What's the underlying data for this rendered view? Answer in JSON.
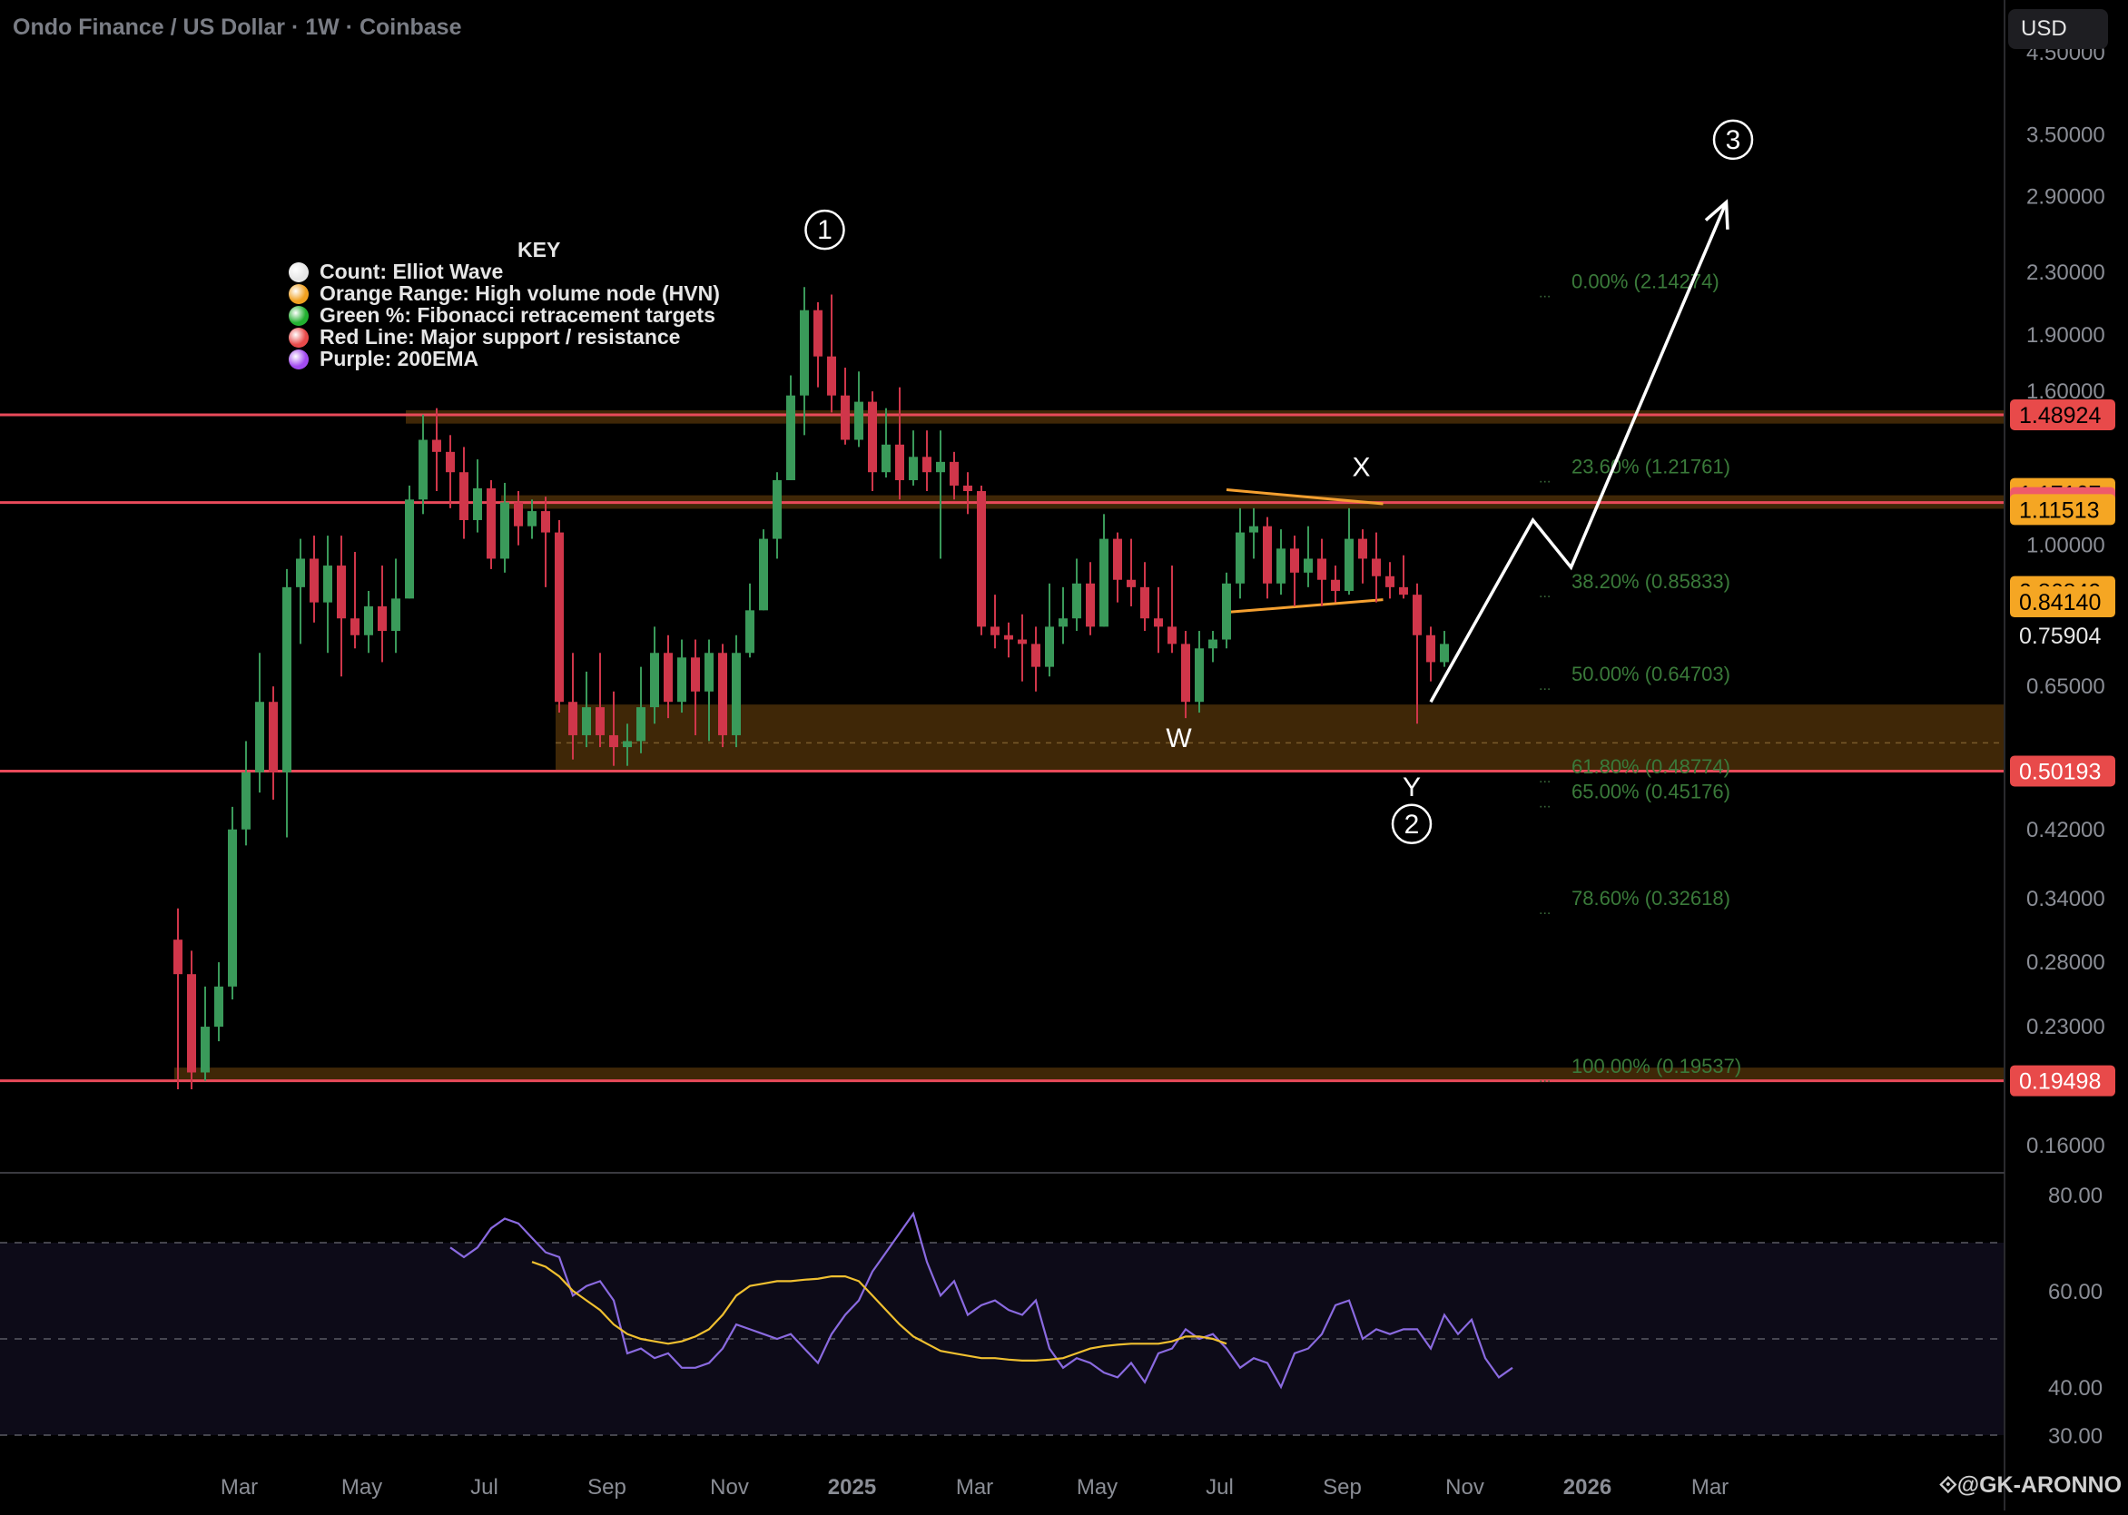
{
  "header": {
    "title": "Ondo Finance / US Dollar · 1W · Coinbase",
    "currency_button": "USD"
  },
  "key": {
    "title": "KEY",
    "items": [
      {
        "label": "Count: Elliot Wave",
        "color": "#e6e6e6"
      },
      {
        "label": "Orange Range: High volume node (HVN)",
        "color": "#f0a020"
      },
      {
        "label": "Green %: Fibonacci retracement targets",
        "color": "#22b030"
      },
      {
        "label": "Red Line: Major support / resistance",
        "color": "#e84a4a"
      },
      {
        "label": "Purple: 200EMA",
        "color": "#a24bf0"
      }
    ]
  },
  "watermark": "@GK-ARONNO",
  "chart_data": {
    "type": "candlestick",
    "title": "Ondo Finance / US Dollar · 1W · Coinbase",
    "y_scale": "log",
    "ylim": [
      0.15,
      5.0
    ],
    "price_ticks": [
      "4.50000",
      "3.50000",
      "2.90000",
      "2.30000",
      "1.90000",
      "1.60000",
      "1.00000",
      "0.65000",
      "0.42000",
      "0.34000",
      "0.28000",
      "0.23000",
      "0.16000"
    ],
    "price_tick_values": [
      4.5,
      3.5,
      2.9,
      2.3,
      1.9,
      1.6,
      1.0,
      0.65,
      0.42,
      0.34,
      0.28,
      0.23,
      0.16
    ],
    "price_labels": [
      {
        "text": "1.48924",
        "value": 1.48924,
        "color": "#e84a4a",
        "text_color": "#000000"
      },
      {
        "text": "1.17167",
        "value": 1.17167,
        "color": "#f5a623",
        "text_color": "#000000"
      },
      {
        "text": "1.13939",
        "value": 1.13939,
        "color": "#ef5a6a",
        "text_color": "#ffffff"
      },
      {
        "text": "1.11513",
        "value": 1.11513,
        "color": "#f5a623",
        "text_color": "#000000"
      },
      {
        "text": "0.86849",
        "value": 0.86849,
        "color": "#f5a623",
        "text_color": "#000000"
      },
      {
        "text": "0.84140",
        "value": 0.8414,
        "color": "#f5a623",
        "text_color": "#000000"
      },
      {
        "text": "0.75904",
        "value": 0.75904,
        "color": "transparent",
        "text_color": "#e6e6e6"
      },
      {
        "text": "0.50193",
        "value": 0.50193,
        "color": "#e84a4a",
        "text_color": "#ffffff"
      },
      {
        "text": "0.19498",
        "value": 0.19498,
        "color": "#e84a4a",
        "text_color": "#ffffff"
      }
    ],
    "time_labels": [
      {
        "text": "Mar",
        "week": 4.5,
        "bold": false
      },
      {
        "text": "May",
        "week": 13.5,
        "bold": false
      },
      {
        "text": "Jul",
        "week": 22.5,
        "bold": false
      },
      {
        "text": "Sep",
        "week": 31.5,
        "bold": false
      },
      {
        "text": "Nov",
        "week": 40.5,
        "bold": false
      },
      {
        "text": "2025",
        "week": 49.5,
        "bold": true
      },
      {
        "text": "Mar",
        "week": 58.5,
        "bold": false
      },
      {
        "text": "May",
        "week": 67.5,
        "bold": false
      },
      {
        "text": "Jul",
        "week": 76.5,
        "bold": false
      },
      {
        "text": "Sep",
        "week": 85.5,
        "bold": false
      },
      {
        "text": "Nov",
        "week": 94.5,
        "bold": false
      },
      {
        "text": "2026",
        "week": 103.5,
        "bold": true
      },
      {
        "text": "Mar",
        "week": 112.5,
        "bold": false
      }
    ],
    "candles": [
      [
        0.3,
        0.27,
        0.33,
        0.19
      ],
      [
        0.27,
        0.2,
        0.29,
        0.19
      ],
      [
        0.2,
        0.23,
        0.26,
        0.195
      ],
      [
        0.23,
        0.26,
        0.28,
        0.22
      ],
      [
        0.26,
        0.42,
        0.45,
        0.25
      ],
      [
        0.42,
        0.5,
        0.55,
        0.4
      ],
      [
        0.5,
        0.62,
        0.72,
        0.47
      ],
      [
        0.62,
        0.5,
        0.65,
        0.46
      ],
      [
        0.5,
        0.88,
        0.93,
        0.41
      ],
      [
        0.88,
        0.96,
        1.02,
        0.74
      ],
      [
        0.96,
        0.84,
        1.03,
        0.79
      ],
      [
        0.84,
        0.94,
        1.03,
        0.72
      ],
      [
        0.94,
        0.8,
        1.03,
        0.67
      ],
      [
        0.8,
        0.76,
        0.98,
        0.73
      ],
      [
        0.76,
        0.83,
        0.87,
        0.72
      ],
      [
        0.83,
        0.77,
        0.94,
        0.7
      ],
      [
        0.77,
        0.85,
        0.96,
        0.72
      ],
      [
        0.85,
        1.15,
        1.2,
        0.85
      ],
      [
        1.15,
        1.38,
        1.49,
        1.1
      ],
      [
        1.38,
        1.33,
        1.52,
        1.18
      ],
      [
        1.33,
        1.25,
        1.4,
        1.12
      ],
      [
        1.25,
        1.08,
        1.35,
        1.02
      ],
      [
        1.08,
        1.19,
        1.3,
        1.04
      ],
      [
        1.19,
        0.96,
        1.22,
        0.93
      ],
      [
        0.96,
        1.14,
        1.21,
        0.92
      ],
      [
        1.14,
        1.06,
        1.18,
        1.0
      ],
      [
        1.06,
        1.11,
        1.15,
        1.02
      ],
      [
        1.11,
        1.04,
        1.16,
        0.88
      ],
      [
        1.04,
        0.62,
        1.08,
        0.6
      ],
      [
        0.62,
        0.56,
        0.72,
        0.52
      ],
      [
        0.56,
        0.61,
        0.68,
        0.54
      ],
      [
        0.61,
        0.56,
        0.72,
        0.54
      ],
      [
        0.56,
        0.54,
        0.64,
        0.51
      ],
      [
        0.54,
        0.55,
        0.58,
        0.51
      ],
      [
        0.55,
        0.61,
        0.69,
        0.53
      ],
      [
        0.61,
        0.72,
        0.78,
        0.58
      ],
      [
        0.72,
        0.62,
        0.76,
        0.59
      ],
      [
        0.62,
        0.71,
        0.75,
        0.6
      ],
      [
        0.71,
        0.64,
        0.75,
        0.56
      ],
      [
        0.64,
        0.72,
        0.75,
        0.55
      ],
      [
        0.72,
        0.56,
        0.74,
        0.54
      ],
      [
        0.56,
        0.72,
        0.76,
        0.54
      ],
      [
        0.72,
        0.82,
        0.89,
        0.71
      ],
      [
        0.82,
        1.02,
        1.05,
        0.82
      ],
      [
        1.02,
        1.22,
        1.25,
        0.96
      ],
      [
        1.22,
        1.58,
        1.68,
        1.22
      ],
      [
        1.58,
        2.05,
        2.2,
        1.4
      ],
      [
        2.05,
        1.78,
        2.1,
        1.62
      ],
      [
        1.78,
        1.58,
        2.15,
        1.5
      ],
      [
        1.58,
        1.38,
        1.72,
        1.36
      ],
      [
        1.38,
        1.55,
        1.7,
        1.35
      ],
      [
        1.55,
        1.25,
        1.6,
        1.18
      ],
      [
        1.25,
        1.36,
        1.52,
        1.23
      ],
      [
        1.36,
        1.22,
        1.62,
        1.15
      ],
      [
        1.22,
        1.31,
        1.42,
        1.2
      ],
      [
        1.31,
        1.25,
        1.42,
        1.18
      ],
      [
        1.25,
        1.29,
        1.42,
        0.96
      ],
      [
        1.29,
        1.2,
        1.33,
        1.15
      ],
      [
        1.2,
        1.18,
        1.25,
        1.1
      ],
      [
        1.18,
        0.78,
        1.2,
        0.76
      ],
      [
        0.78,
        0.76,
        0.86,
        0.73
      ],
      [
        0.76,
        0.75,
        0.79,
        0.71
      ],
      [
        0.75,
        0.74,
        0.81,
        0.66
      ],
      [
        0.74,
        0.69,
        0.78,
        0.64
      ],
      [
        0.69,
        0.78,
        0.89,
        0.67
      ],
      [
        0.78,
        0.8,
        0.88,
        0.74
      ],
      [
        0.8,
        0.89,
        0.96,
        0.77
      ],
      [
        0.89,
        0.78,
        0.95,
        0.76
      ],
      [
        0.78,
        1.02,
        1.1,
        0.78
      ],
      [
        1.02,
        0.9,
        1.04,
        0.84
      ],
      [
        0.9,
        0.88,
        1.02,
        0.83
      ],
      [
        0.88,
        0.8,
        0.95,
        0.77
      ],
      [
        0.8,
        0.78,
        0.88,
        0.72
      ],
      [
        0.78,
        0.74,
        0.94,
        0.72
      ],
      [
        0.74,
        0.62,
        0.77,
        0.59
      ],
      [
        0.62,
        0.73,
        0.77,
        0.6
      ],
      [
        0.73,
        0.75,
        0.77,
        0.7
      ],
      [
        0.75,
        0.89,
        0.92,
        0.73
      ],
      [
        0.89,
        1.04,
        1.12,
        0.85
      ],
      [
        1.04,
        1.06,
        1.12,
        0.96
      ],
      [
        1.06,
        0.89,
        1.09,
        0.85
      ],
      [
        0.89,
        0.99,
        1.05,
        0.86
      ],
      [
        0.99,
        0.92,
        1.03,
        0.83
      ],
      [
        0.92,
        0.96,
        1.06,
        0.88
      ],
      [
        0.96,
        0.9,
        1.02,
        0.83
      ],
      [
        0.9,
        0.87,
        0.94,
        0.84
      ],
      [
        0.87,
        1.02,
        1.12,
        0.86
      ],
      [
        1.02,
        0.96,
        1.05,
        0.89
      ],
      [
        0.96,
        0.91,
        1.04,
        0.84
      ],
      [
        0.91,
        0.88,
        0.95,
        0.85
      ],
      [
        0.88,
        0.86,
        0.97,
        0.85
      ],
      [
        0.86,
        0.76,
        0.89,
        0.58
      ],
      [
        0.76,
        0.7,
        0.78,
        0.66
      ],
      [
        0.7,
        0.74,
        0.77,
        0.69
      ]
    ],
    "rsi": {
      "ylim": [
        27,
        82
      ],
      "ticks": [
        "80.00",
        "60.00",
        "40.00",
        "30.00"
      ],
      "tick_values": [
        80,
        60,
        40,
        30
      ],
      "bands": [
        70,
        50,
        30
      ],
      "start_index": 20,
      "rsi_values": [
        69,
        67,
        69,
        73,
        75,
        74,
        71,
        68,
        67,
        59,
        61,
        62,
        58,
        47,
        48,
        46,
        47,
        44,
        44,
        45,
        48,
        53,
        52,
        51,
        50,
        51,
        48,
        45,
        51,
        55,
        58,
        64,
        68,
        72,
        76,
        66,
        59,
        62,
        55,
        57,
        58,
        56,
        55,
        58,
        48,
        44,
        46,
        45,
        43,
        42,
        45,
        41,
        47,
        48,
        52,
        50,
        51,
        48,
        44,
        46,
        45,
        40,
        47,
        48,
        51,
        57,
        58,
        50,
        52,
        51,
        52,
        52,
        48,
        55,
        51,
        54,
        46,
        42,
        44
      ],
      "ma_start_index": 26,
      "ma_values": [
        66,
        65,
        63,
        60,
        58,
        56,
        53,
        51,
        50,
        49.5,
        49,
        49.5,
        50.5,
        52,
        55,
        59,
        61,
        61.5,
        62,
        62,
        62.3,
        62.5,
        63,
        63,
        62,
        59,
        56,
        53,
        50.5,
        49,
        47.5,
        47,
        46.5,
        46,
        46,
        45.7,
        45.5,
        45.5,
        45.7,
        46,
        47,
        48,
        48.5,
        48.8,
        49,
        49,
        49,
        49.5,
        50.5,
        50.5,
        50,
        49
      ]
    },
    "annotations": {
      "elliott": [
        {
          "text": "1",
          "circled": true,
          "week": 47.5,
          "price": 2.62
        },
        {
          "text": "X",
          "circled": false,
          "week": 86.9,
          "price": 1.27
        },
        {
          "text": "W",
          "circled": false,
          "week": 73.5,
          "price": 0.555
        },
        {
          "text": "Y",
          "circled": false,
          "week": 90.6,
          "price": 0.478
        },
        {
          "text": "2",
          "circled": true,
          "week": 90.6,
          "price": 0.427
        },
        {
          "text": "3",
          "circled": true,
          "week": 114.2,
          "price": 3.45
        }
      ],
      "fib_levels": [
        {
          "text": "0.00% (2.14274)",
          "value": 2.14274
        },
        {
          "text": "23.60% (1.21761)",
          "value": 1.21761
        },
        {
          "text": "38.20% (0.85833)",
          "value": 0.85833
        },
        {
          "text": "50.00% (0.64703)",
          "value": 0.64703
        },
        {
          "text": "61.80% (0.48774)",
          "value": 0.48774
        },
        {
          "text": "65.00% (0.45176)",
          "value": 0.45176
        },
        {
          "text": "78.60% (0.32618)",
          "value": 0.32618
        },
        {
          "text": "100.00% (0.19537)",
          "value": 0.19537
        }
      ],
      "hvn_zones": [
        {
          "from_week": 17,
          "high": 1.51,
          "low": 1.45
        },
        {
          "from_week": 24,
          "high": 1.165,
          "low": 1.118
        },
        {
          "from_week": 28,
          "high": 0.615,
          "low": 0.502
        },
        {
          "from_week": 0,
          "high": 0.203,
          "low": 0.195
        }
      ],
      "sr_lines": [
        1.48924,
        1.13939,
        0.50193,
        0.19498
      ],
      "triangle": [
        {
          "from": [
            77,
            1.185
          ],
          "to": [
            88.5,
            1.135
          ]
        },
        {
          "from": [
            77,
            0.815
          ],
          "to": [
            88.5,
            0.847
          ]
        }
      ],
      "projection_path": [
        [
          92.0,
          0.62
        ],
        [
          99.5,
          1.08
        ],
        [
          102.3,
          0.935
        ],
        [
          113.7,
          2.85
        ]
      ]
    }
  }
}
